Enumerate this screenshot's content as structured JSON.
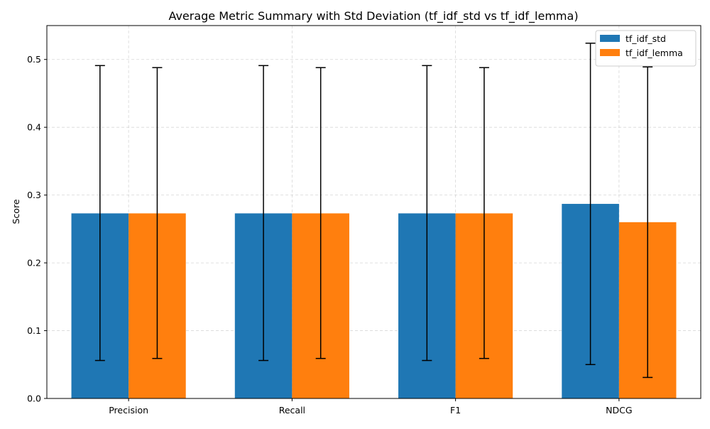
{
  "chart_data": {
    "type": "bar",
    "title": "Average Metric Summary with Std Deviation (tf_idf_std vs tf_idf_lemma)",
    "xlabel": "",
    "ylabel": "Score",
    "categories": [
      "Precision",
      "Recall",
      "F1",
      "NDCG"
    ],
    "ylim": [
      0,
      0.55
    ],
    "yticks": [
      0.0,
      0.1,
      0.2,
      0.3,
      0.4,
      0.5
    ],
    "ytick_labels": [
      "0.0",
      "0.1",
      "0.2",
      "0.3",
      "0.4",
      "0.5"
    ],
    "grid": true,
    "legend_position": "top-right",
    "series": [
      {
        "name": "tf_idf_std",
        "color": "#1f77b4",
        "values": [
          0.273,
          0.273,
          0.273,
          0.287
        ],
        "error_low": [
          0.056,
          0.056,
          0.056,
          0.05
        ],
        "error_high": [
          0.491,
          0.491,
          0.491,
          0.524
        ]
      },
      {
        "name": "tf_idf_lemma",
        "color": "#ff7f0e",
        "values": [
          0.273,
          0.273,
          0.273,
          0.26
        ],
        "error_low": [
          0.059,
          0.059,
          0.059,
          0.031
        ],
        "error_high": [
          0.488,
          0.488,
          0.488,
          0.489
        ]
      }
    ]
  }
}
